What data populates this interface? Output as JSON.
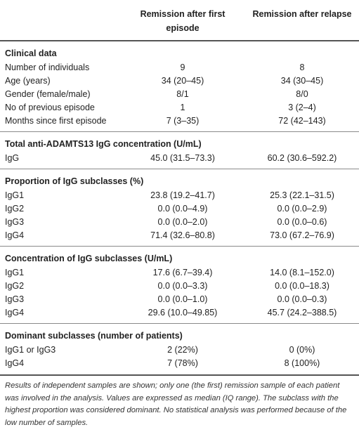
{
  "header": {
    "col1": "Remission after first episode",
    "col2": "Remission after relapse"
  },
  "sections": {
    "clinical": {
      "title": "Clinical data",
      "rows": [
        {
          "label": "Number of individuals",
          "v1": "9",
          "v2": "8"
        },
        {
          "label": "Age (years)",
          "v1": "34 (20–45)",
          "v2": "34 (30–45)"
        },
        {
          "label": "Gender (female/male)",
          "v1": "8/1",
          "v2": "8/0"
        },
        {
          "label": "No of previous episode",
          "v1": "1",
          "v2": "3 (2–4)"
        },
        {
          "label": "Months since first episode",
          "v1": "7 (3–35)",
          "v2": "72 (42–143)"
        }
      ]
    },
    "total": {
      "title": "Total anti-ADAMTS13 IgG concentration (U/mL)",
      "rows": [
        {
          "label": "IgG",
          "v1": "45.0 (31.5–73.3)",
          "v2": "60.2 (30.6–592.2)"
        }
      ]
    },
    "proportion": {
      "title": "Proportion of IgG subclasses (%)",
      "rows": [
        {
          "label": "IgG1",
          "v1": "23.8 (19.2–41.7)",
          "v2": "25.3 (22.1–31.5)"
        },
        {
          "label": "IgG2",
          "v1": "0.0 (0.0–4.9)",
          "v2": "0.0 (0.0–2.9)"
        },
        {
          "label": "IgG3",
          "v1": "0.0 (0.0–2.0)",
          "v2": "0.0 (0.0–0.6)"
        },
        {
          "label": "IgG4",
          "v1": "71.4 (32.6–80.8)",
          "v2": "73.0 (67.2–76.9)"
        }
      ]
    },
    "concentration": {
      "title": "Concentration of IgG subclasses (U/mL)",
      "rows": [
        {
          "label": "IgG1",
          "v1": "17.6 (6.7–39.4)",
          "v2": "14.0 (8.1–152.0)"
        },
        {
          "label": "IgG2",
          "v1": "0.0 (0.0–3.3)",
          "v2": "0.0 (0.0–18.3)"
        },
        {
          "label": "IgG3",
          "v1": "0.0 (0.0–1.0)",
          "v2": "0.0 (0.0–0.3)"
        },
        {
          "label": "IgG4",
          "v1": "29.6 (10.0–49.85)",
          "v2": "45.7 (24.2–388.5)"
        }
      ]
    },
    "dominant": {
      "title": "Dominant subclasses (number of patients)",
      "rows": [
        {
          "label": "IgG1 or IgG3",
          "v1": "2 (22%)",
          "v2": "0 (0%)"
        },
        {
          "label": "IgG4",
          "v1": "7 (78%)",
          "v2": "8 (100%)"
        }
      ]
    }
  },
  "footnote": "Results of independent samples are shown; only one (the first) remission sample of each patient was involved in the analysis. Values are expressed as median (IQ range). The subclass with the highest proportion was considered dominant. No statistical analysis was performed because of the low number of samples."
}
